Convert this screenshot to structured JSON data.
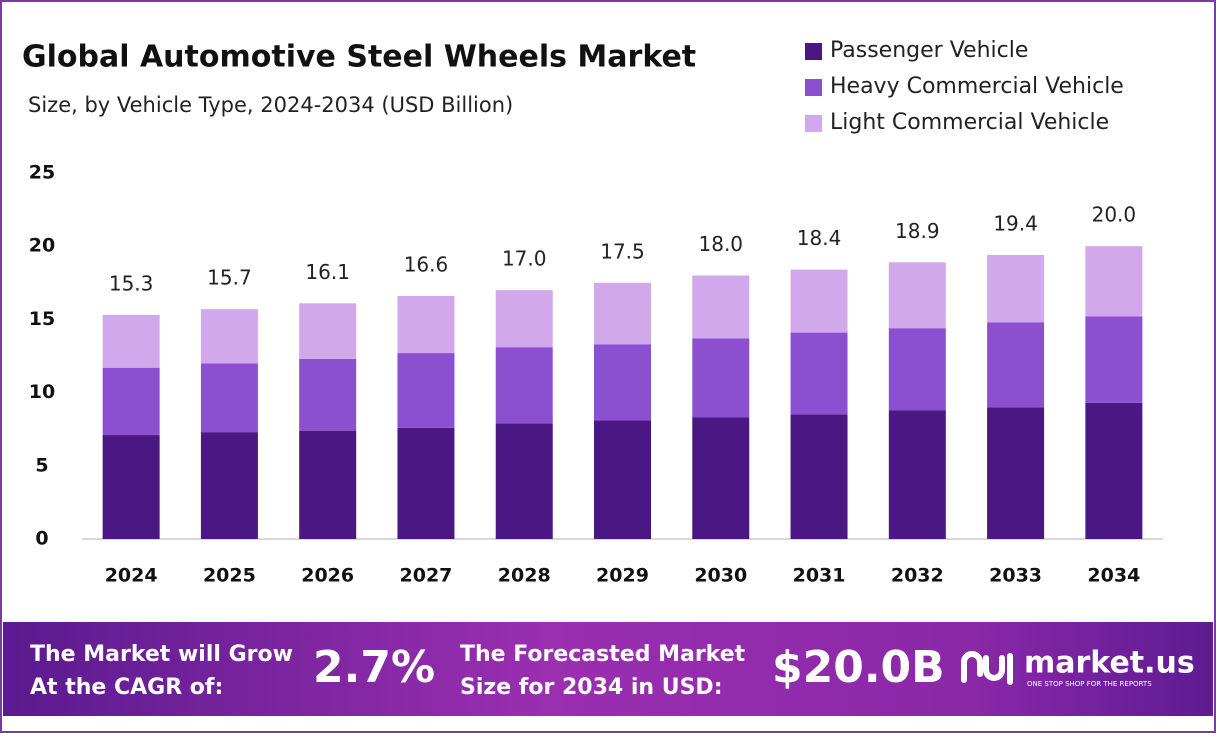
{
  "chart_data": {
    "type": "stacked-bar",
    "title": "Global Automotive Steel Wheels Market",
    "subtitle": "Size, by Vehicle Type, 2024-2034 (USD Billion)",
    "categories": [
      "2024",
      "2025",
      "2026",
      "2027",
      "2028",
      "2029",
      "2030",
      "2031",
      "2032",
      "2033",
      "2034"
    ],
    "series": [
      {
        "name": "Passenger Vehicle",
        "color": "#4b1782",
        "values": [
          7.1,
          7.3,
          7.4,
          7.6,
          7.9,
          8.1,
          8.3,
          8.5,
          8.8,
          9.0,
          9.3
        ]
      },
      {
        "name": "Heavy Commercial Vehicle",
        "color": "#8a50d0",
        "values": [
          4.6,
          4.7,
          4.9,
          5.1,
          5.2,
          5.2,
          5.4,
          5.6,
          5.6,
          5.8,
          5.9
        ]
      },
      {
        "name": "Light Commercial Vehicle",
        "color": "#d1a8eb",
        "values": [
          3.6,
          3.7,
          3.8,
          3.9,
          3.9,
          4.2,
          4.3,
          4.3,
          4.5,
          4.6,
          4.8
        ]
      }
    ],
    "totals": {
      "values": [
        15.3,
        15.7,
        16.1,
        16.6,
        17.0,
        17.5,
        18.0,
        18.4,
        18.9,
        19.4,
        20.0
      ],
      "value_labels": [
        "15.3",
        "15.7",
        "16.1",
        "16.6",
        "17.0",
        "17.5",
        "18.0",
        "18.4",
        "18.9",
        "19.4",
        "20.0"
      ]
    },
    "ylim": [
      0,
      25
    ],
    "yticks": [
      0,
      5,
      10,
      15,
      20,
      25
    ],
    "grid": false,
    "legend": "top-right"
  },
  "footer": {
    "cagr_text": [
      "The Market will Grow",
      "At the CAGR of:"
    ],
    "cagr_value": "2.7%",
    "forecast_text": [
      "The Forecasted Market",
      "Size for 2034 in USD:"
    ],
    "forecast_value": "$20.0B",
    "brand": "market.us",
    "tagline": "ONE STOP SHOP FOR THE REPORTS"
  }
}
